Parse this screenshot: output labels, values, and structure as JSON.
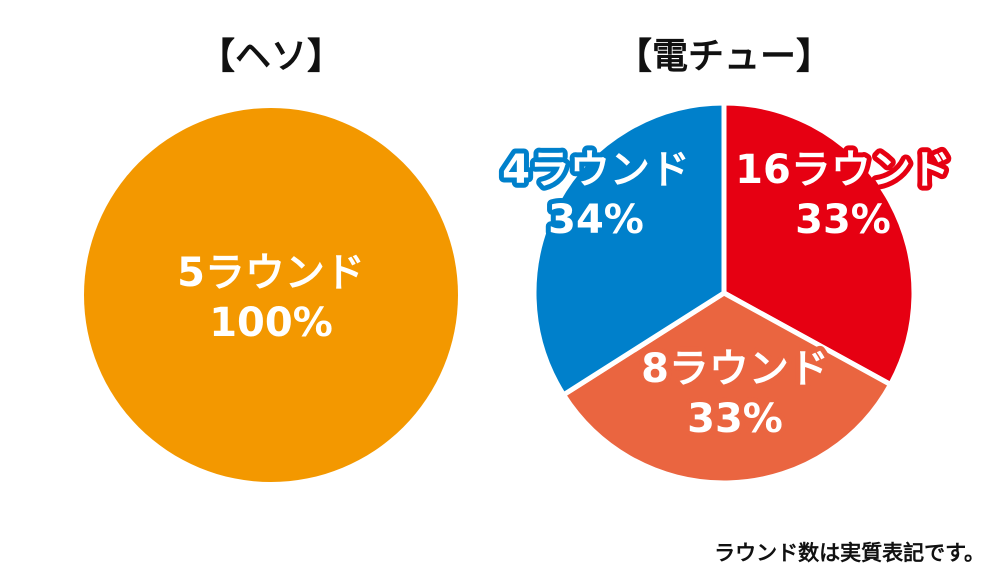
{
  "chart_data": [
    {
      "type": "pie",
      "title": "【ヘソ】",
      "slices": [
        {
          "name": "5ラウンド",
          "value": 100,
          "label": "100%",
          "color": "#F39800"
        }
      ]
    },
    {
      "type": "pie",
      "title": "【電チュー】",
      "slices": [
        {
          "name": "16ラウンド",
          "value": 33,
          "label": "33%",
          "color": "#E60012"
        },
        {
          "name": "8ラウンド",
          "value": 33,
          "label": "33%",
          "color": "#EA6540"
        },
        {
          "name": "4ラウンド",
          "value": 34,
          "label": "34%",
          "color": "#0080CB"
        }
      ]
    }
  ],
  "footnote": "ラウンド数は実質表記です。"
}
